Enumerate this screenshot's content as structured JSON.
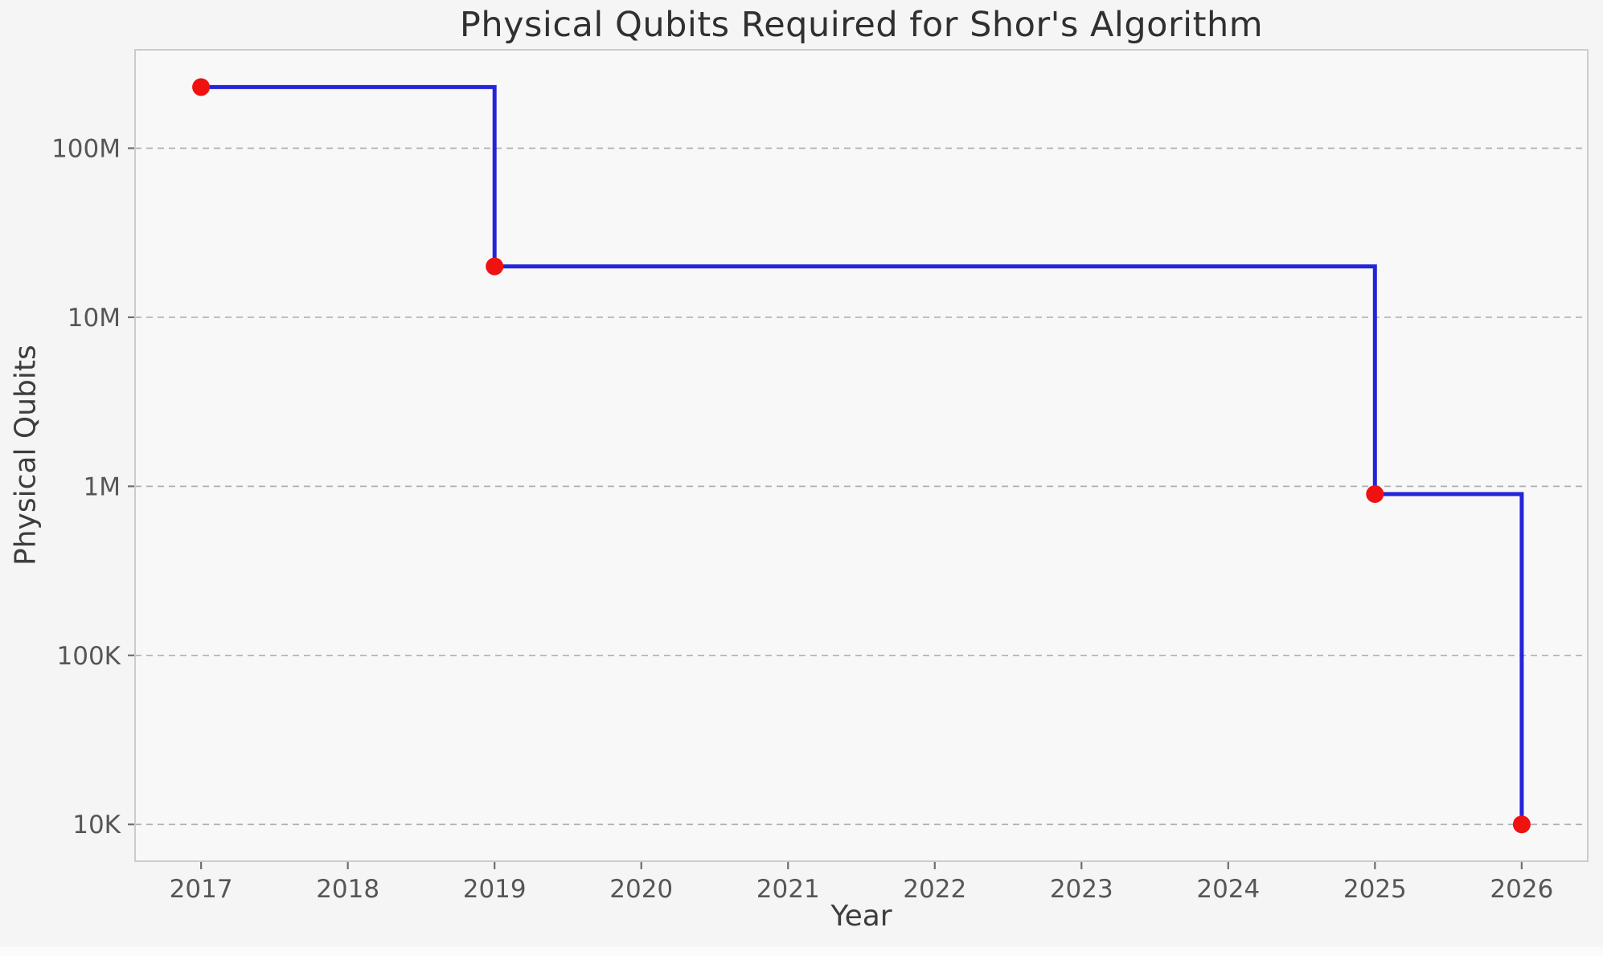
{
  "figure": {
    "title": "Physical Qubits Required for Shor's Algorithm"
  },
  "chart_data": {
    "type": "line",
    "subtype": "step-post",
    "title": "Physical Qubits Required for Shor's Algorithm",
    "xlabel": "Year",
    "ylabel": "Physical Qubits",
    "x": [
      2017,
      2019,
      2025,
      2026
    ],
    "y": [
      230000000,
      20000000,
      900000,
      10000
    ],
    "x_ticks": [
      {
        "value": 2017,
        "label": "2017"
      },
      {
        "value": 2018,
        "label": "2018"
      },
      {
        "value": 2019,
        "label": "2019"
      },
      {
        "value": 2020,
        "label": "2020"
      },
      {
        "value": 2021,
        "label": "2021"
      },
      {
        "value": 2022,
        "label": "2022"
      },
      {
        "value": 2023,
        "label": "2023"
      },
      {
        "value": 2024,
        "label": "2024"
      },
      {
        "value": 2025,
        "label": "2025"
      },
      {
        "value": 2026,
        "label": "2026"
      }
    ],
    "y_ticks": [
      {
        "value": 10000,
        "label": "10K"
      },
      {
        "value": 100000,
        "label": "100K"
      },
      {
        "value": 1000000,
        "label": "1M"
      },
      {
        "value": 10000000,
        "label": "10M"
      },
      {
        "value": 100000000,
        "label": "100M"
      }
    ],
    "y_scale": "log",
    "xlim": [
      2016.55,
      2026.45
    ],
    "ylim": [
      6060,
      382000000
    ],
    "grid": true,
    "grid_style": "dashed",
    "legend": false,
    "colors": {
      "line": "#2424d8",
      "marker": "#f01111",
      "grid": "#b0b0b0",
      "frame": "#cccccc",
      "tick_mark": "#6e6e6e",
      "axes_background": "#f8f8f8",
      "figure_background": "#f5f5f6",
      "tick_text": "#565656",
      "title_text": "#303030",
      "label_text": "#3d3d3d"
    }
  }
}
